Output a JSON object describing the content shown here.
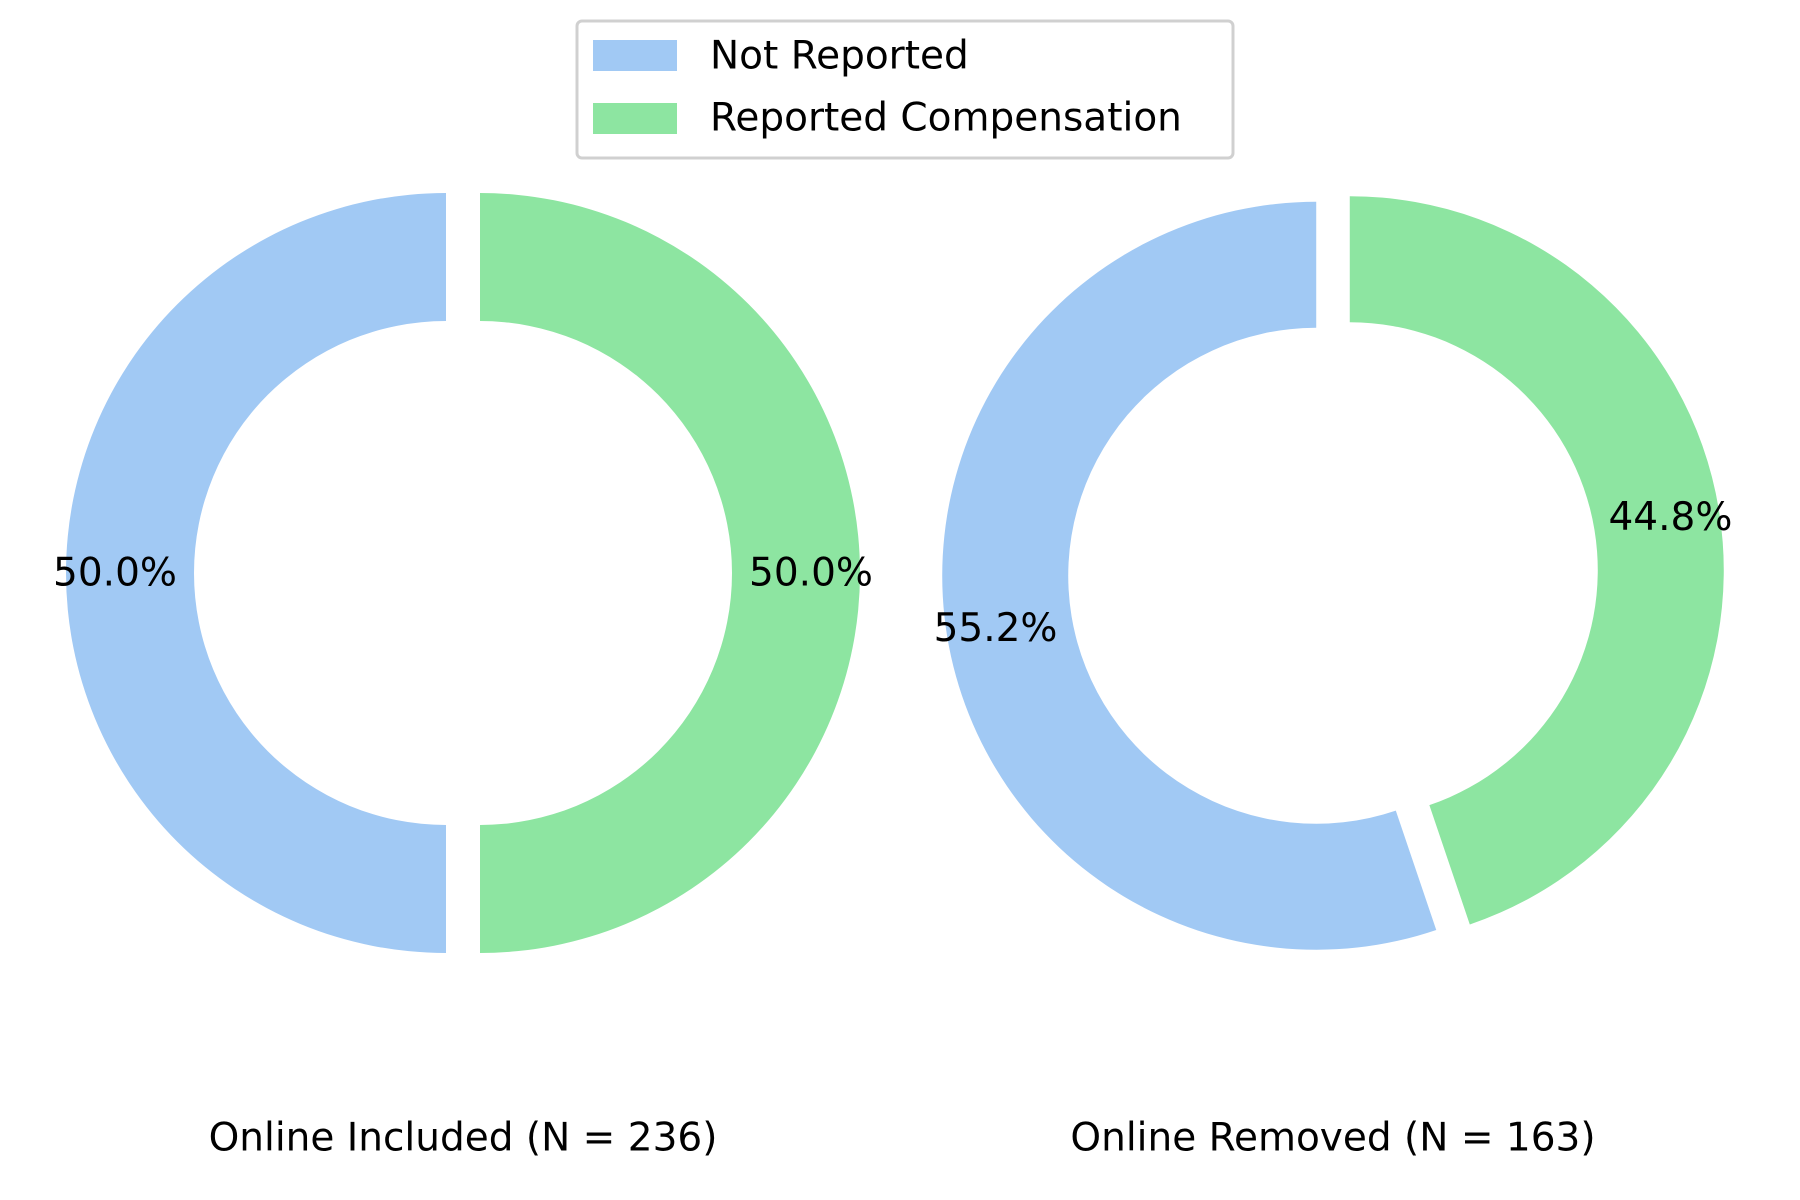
{
  "chart_data": {
    "type": "pie",
    "variant": "donut",
    "legend": {
      "placement": "top-center",
      "entries": [
        {
          "label": "Not Reported",
          "color": "#a1c9f4"
        },
        {
          "label": "Reported Compensation",
          "color": "#8de5a1"
        }
      ]
    },
    "charts": [
      {
        "title": "Online Included (N = 236)",
        "slices": [
          {
            "label": "Not Reported",
            "value": 50.0,
            "display": "50.0%",
            "color": "#a1c9f4"
          },
          {
            "label": "Reported Compensation",
            "value": 50.0,
            "display": "50.0%",
            "color": "#8de5a1"
          }
        ]
      },
      {
        "title": "Online Removed (N = 163)",
        "slices": [
          {
            "label": "Not Reported",
            "value": 55.2,
            "display": "55.2%",
            "color": "#a1c9f4"
          },
          {
            "label": "Reported Compensation",
            "value": 44.8,
            "display": "44.8%",
            "color": "#8de5a1"
          }
        ]
      }
    ]
  }
}
